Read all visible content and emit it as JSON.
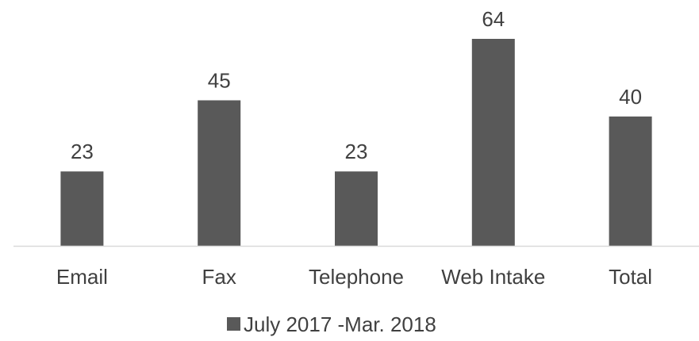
{
  "chart_data": {
    "type": "bar",
    "categories": [
      "Email",
      "Fax",
      "Telephone",
      "Web Intake",
      "Total"
    ],
    "series": [
      {
        "name": "July 2017 -Mar. 2018",
        "values": [
          23,
          45,
          23,
          64,
          40
        ],
        "color": "#595959"
      }
    ],
    "data_labels": [
      "23",
      "45",
      "23",
      "64",
      "40"
    ],
    "title": "",
    "xlabel": "",
    "ylabel": "",
    "ylim": [
      0,
      64
    ],
    "grid": false,
    "legend_position": "bottom",
    "axis_color": "#d9d9d9",
    "text_color": "#404040"
  }
}
